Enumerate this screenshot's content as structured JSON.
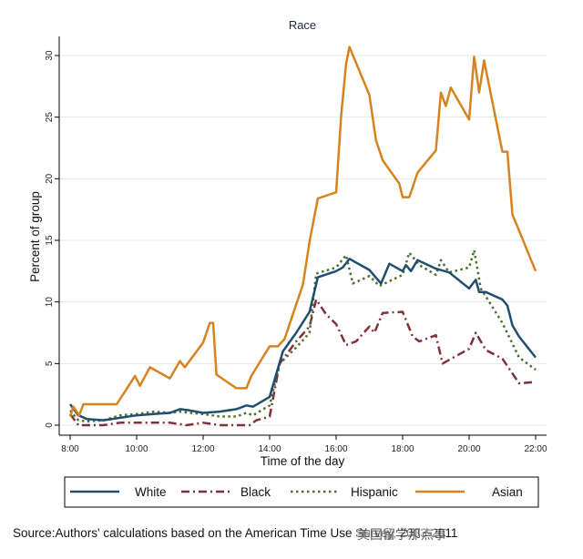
{
  "chart_data": {
    "type": "line",
    "title": "Race",
    "xlabel": "Time of the day",
    "ylabel": "Percent of group",
    "xlim": [
      8,
      22
    ],
    "ylim": [
      0,
      30
    ],
    "x_ticks": [
      {
        "value": 8,
        "label": "8:00"
      },
      {
        "value": 10,
        "label": "10:00"
      },
      {
        "value": 12,
        "label": "12:00"
      },
      {
        "value": 14,
        "label": "14:00"
      },
      {
        "value": 16,
        "label": "16:00"
      },
      {
        "value": 18,
        "label": "18:00"
      },
      {
        "value": 20,
        "label": "20:00"
      },
      {
        "value": 22,
        "label": "22:00"
      }
    ],
    "y_ticks": [
      {
        "value": 0,
        "label": "0"
      },
      {
        "value": 5,
        "label": "5"
      },
      {
        "value": 10,
        "label": "10"
      },
      {
        "value": 15,
        "label": "15"
      },
      {
        "value": 20,
        "label": "20"
      },
      {
        "value": 25,
        "label": "25"
      },
      {
        "value": 30,
        "label": "30"
      }
    ],
    "grid": "horizontal",
    "legend_position": "bottom",
    "series": [
      {
        "name": "White",
        "color": "#1f4e6e",
        "style": "solid",
        "points": [
          [
            8.0,
            1.7
          ],
          [
            8.25,
            0.8
          ],
          [
            8.5,
            0.5
          ],
          [
            9.0,
            0.4
          ],
          [
            9.5,
            0.6
          ],
          [
            10.0,
            0.8
          ],
          [
            10.5,
            0.9
          ],
          [
            11.0,
            1.0
          ],
          [
            11.3,
            1.3
          ],
          [
            11.6,
            1.2
          ],
          [
            12.0,
            1.0
          ],
          [
            12.5,
            1.1
          ],
          [
            13.0,
            1.3
          ],
          [
            13.3,
            1.6
          ],
          [
            13.5,
            1.5
          ],
          [
            14.0,
            2.3
          ],
          [
            14.4,
            6.0
          ],
          [
            14.8,
            7.5
          ],
          [
            15.2,
            9.2
          ],
          [
            15.45,
            12.0
          ],
          [
            16.0,
            12.5
          ],
          [
            16.2,
            12.8
          ],
          [
            16.4,
            13.5
          ],
          [
            17.0,
            12.6
          ],
          [
            17.35,
            11.5
          ],
          [
            17.6,
            13.1
          ],
          [
            18.0,
            12.5
          ],
          [
            18.1,
            13.0
          ],
          [
            18.25,
            12.5
          ],
          [
            18.45,
            13.4
          ],
          [
            19.0,
            12.7
          ],
          [
            19.4,
            12.4
          ],
          [
            20.0,
            11.1
          ],
          [
            20.2,
            11.8
          ],
          [
            20.3,
            10.8
          ],
          [
            20.5,
            10.8
          ],
          [
            21.0,
            10.2
          ],
          [
            21.15,
            9.7
          ],
          [
            21.3,
            8.1
          ],
          [
            21.5,
            7.2
          ],
          [
            22.0,
            5.5
          ]
        ]
      },
      {
        "name": "Black",
        "color": "#7f3139",
        "style": "dashdot",
        "points": [
          [
            8.0,
            0.9
          ],
          [
            8.25,
            0.0
          ],
          [
            8.5,
            0.0
          ],
          [
            9.0,
            0.0
          ],
          [
            9.5,
            0.2
          ],
          [
            10.0,
            0.2
          ],
          [
            10.5,
            0.2
          ],
          [
            11.0,
            0.2
          ],
          [
            11.5,
            0.0
          ],
          [
            12.0,
            0.2
          ],
          [
            12.5,
            0.0
          ],
          [
            13.0,
            0.0
          ],
          [
            13.4,
            0.0
          ],
          [
            13.6,
            0.4
          ],
          [
            14.0,
            0.7
          ],
          [
            14.3,
            5.0
          ],
          [
            14.8,
            6.8
          ],
          [
            15.2,
            8.0
          ],
          [
            15.4,
            10.2
          ],
          [
            15.7,
            9.0
          ],
          [
            16.0,
            8.2
          ],
          [
            16.3,
            6.5
          ],
          [
            16.6,
            6.8
          ],
          [
            17.0,
            8.0
          ],
          [
            17.15,
            7.5
          ],
          [
            17.4,
            9.1
          ],
          [
            18.0,
            9.2
          ],
          [
            18.3,
            7.2
          ],
          [
            18.5,
            6.8
          ],
          [
            19.0,
            7.3
          ],
          [
            19.2,
            5.0
          ],
          [
            19.6,
            5.6
          ],
          [
            20.0,
            6.2
          ],
          [
            20.2,
            7.5
          ],
          [
            20.5,
            6.1
          ],
          [
            21.0,
            5.4
          ],
          [
            21.5,
            3.4
          ],
          [
            22.0,
            3.5
          ]
        ]
      },
      {
        "name": "Hispanic",
        "color": "#4e6e2e",
        "style": "dotted",
        "points": [
          [
            8.0,
            1.2
          ],
          [
            8.25,
            0.4
          ],
          [
            8.5,
            0.3
          ],
          [
            9.0,
            0.4
          ],
          [
            9.5,
            0.8
          ],
          [
            10.0,
            0.9
          ],
          [
            10.5,
            1.1
          ],
          [
            11.0,
            1.0
          ],
          [
            11.3,
            1.1
          ],
          [
            11.6,
            1.0
          ],
          [
            12.0,
            0.9
          ],
          [
            12.5,
            0.7
          ],
          [
            13.0,
            0.7
          ],
          [
            13.3,
            1.0
          ],
          [
            13.5,
            0.8
          ],
          [
            14.0,
            1.6
          ],
          [
            14.3,
            5.0
          ],
          [
            14.8,
            6.3
          ],
          [
            15.2,
            7.5
          ],
          [
            15.4,
            12.3
          ],
          [
            16.0,
            12.8
          ],
          [
            16.3,
            13.8
          ],
          [
            16.5,
            11.5
          ],
          [
            17.0,
            12.1
          ],
          [
            17.3,
            11.3
          ],
          [
            18.0,
            12.2
          ],
          [
            18.2,
            14.0
          ],
          [
            18.5,
            13.0
          ],
          [
            19.0,
            12.2
          ],
          [
            19.15,
            13.4
          ],
          [
            19.4,
            12.4
          ],
          [
            20.0,
            12.8
          ],
          [
            20.15,
            14.2
          ],
          [
            20.35,
            11.1
          ],
          [
            21.0,
            8.3
          ],
          [
            21.5,
            5.5
          ],
          [
            22.0,
            4.5
          ]
        ]
      },
      {
        "name": "Asian",
        "color": "#d7821e",
        "style": "solid",
        "points": [
          [
            8.0,
            0.7
          ],
          [
            8.1,
            1.5
          ],
          [
            8.27,
            0.8
          ],
          [
            8.4,
            1.7
          ],
          [
            9.4,
            1.7
          ],
          [
            9.95,
            4.0
          ],
          [
            10.1,
            3.2
          ],
          [
            10.4,
            4.7
          ],
          [
            11.0,
            3.8
          ],
          [
            11.3,
            5.2
          ],
          [
            11.45,
            4.7
          ],
          [
            12.0,
            6.7
          ],
          [
            12.2,
            8.3
          ],
          [
            12.3,
            8.3
          ],
          [
            12.4,
            4.1
          ],
          [
            13.0,
            3.0
          ],
          [
            13.3,
            3.0
          ],
          [
            13.45,
            4.0
          ],
          [
            14.0,
            6.4
          ],
          [
            14.25,
            6.4
          ],
          [
            14.45,
            7.0
          ],
          [
            15.0,
            11.4
          ],
          [
            15.1,
            13.1
          ],
          [
            15.2,
            14.9
          ],
          [
            15.45,
            18.4
          ],
          [
            16.0,
            18.9
          ],
          [
            16.15,
            25.1
          ],
          [
            16.3,
            29.3
          ],
          [
            16.4,
            30.7
          ],
          [
            17.0,
            26.8
          ],
          [
            17.2,
            23.1
          ],
          [
            17.4,
            21.5
          ],
          [
            17.9,
            19.6
          ],
          [
            18.0,
            18.5
          ],
          [
            18.2,
            18.5
          ],
          [
            18.45,
            20.5
          ],
          [
            19.0,
            22.3
          ],
          [
            19.15,
            27.0
          ],
          [
            19.3,
            25.9
          ],
          [
            19.45,
            27.4
          ],
          [
            20.0,
            24.8
          ],
          [
            20.15,
            29.9
          ],
          [
            20.3,
            27.0
          ],
          [
            20.45,
            29.6
          ],
          [
            21.0,
            22.2
          ],
          [
            21.15,
            22.2
          ],
          [
            21.3,
            17.1
          ],
          [
            21.5,
            15.8
          ],
          [
            22.0,
            12.5
          ]
        ]
      }
    ]
  },
  "legend": {
    "items": [
      {
        "label": "White"
      },
      {
        "label": "Black"
      },
      {
        "label": "Hispanic"
      },
      {
        "label": "Asian"
      }
    ]
  },
  "footer": {
    "source": "Source:Authors' calculations based on the American Time Use Survey, 2003-2011",
    "watermark": "美国留学那点事"
  }
}
